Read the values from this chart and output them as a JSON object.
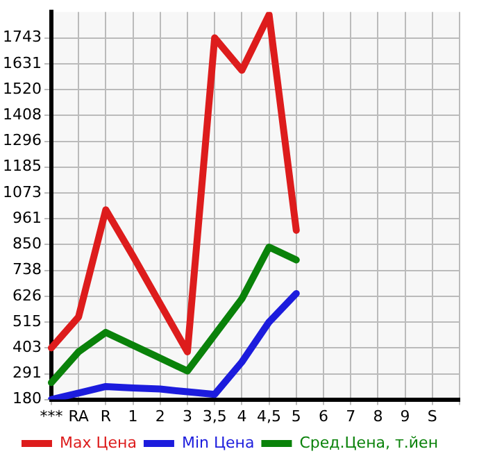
{
  "chart_data": {
    "type": "line",
    "categories": [
      "***",
      "RA",
      "R",
      "1",
      "2",
      "3",
      "3,5",
      "4",
      "4,5",
      "5",
      "6",
      "7",
      "8",
      "9",
      "S",
      null
    ],
    "series": [
      {
        "name": "Max Цена",
        "color": "#dd1c1c",
        "values": [
          403,
          537,
          1000,
          800,
          593,
          386,
          1743,
          1603,
          1843,
          911,
          null,
          null,
          null,
          null,
          null,
          null
        ]
      },
      {
        "name": "Min Цена",
        "color": "#1c1cdd",
        "values": [
          180,
          208,
          236,
          230,
          225,
          213,
          202,
          342,
          515,
          638,
          null,
          null,
          null,
          null,
          null,
          null
        ]
      },
      {
        "name": "Сред.Цена, т.йен",
        "color": "#0a820a",
        "values": [
          253,
          386,
          470,
          414,
          359,
          303,
          459,
          615,
          839,
          783,
          null,
          null,
          null,
          null,
          null,
          null
        ]
      }
    ],
    "ylim": [
      180,
      1855
    ],
    "yticks": [
      180,
      291,
      403,
      515,
      626,
      738,
      850,
      961,
      1073,
      1185,
      1296,
      1408,
      1520,
      1631,
      1743
    ],
    "grid": true,
    "legend": "bottom",
    "marker": "none",
    "line_style": "solid"
  }
}
